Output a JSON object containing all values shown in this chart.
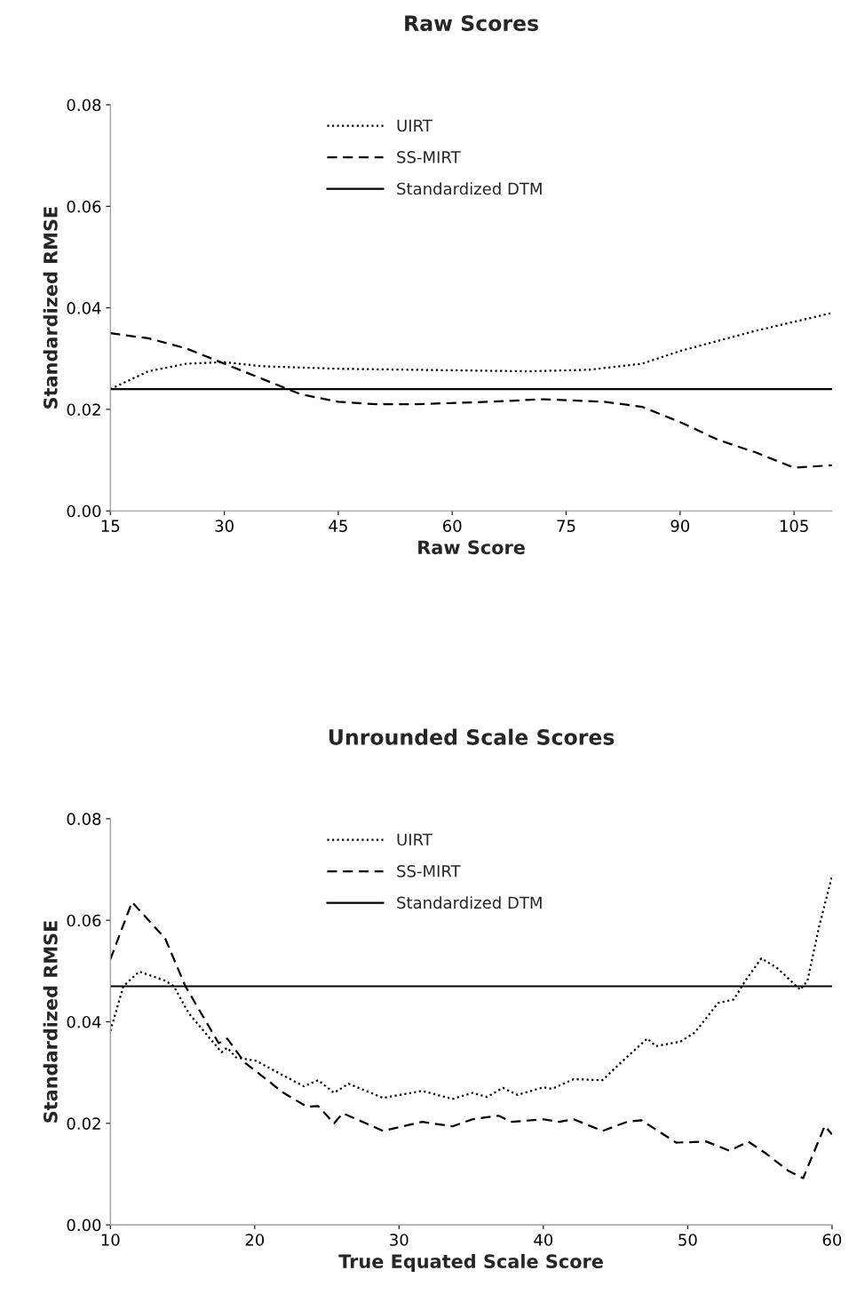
{
  "chart_data": [
    {
      "type": "line",
      "title": "Raw Scores",
      "xlabel": "Raw Score",
      "ylabel": "Standardized RMSE",
      "xlim": [
        15,
        110
      ],
      "xticks": [
        15,
        30,
        45,
        60,
        75,
        90,
        105
      ],
      "ylim": [
        0,
        0.08
      ],
      "yticks": [
        {
          "value": 0,
          "label": "0.00"
        },
        {
          "value": 0.02,
          "label": "0.02"
        },
        {
          "value": 0.04,
          "label": "0.04"
        },
        {
          "value": 0.06,
          "label": "0.06"
        },
        {
          "value": 0.08,
          "label": "0.08"
        }
      ],
      "grid": false,
      "legend": "top",
      "marker": "none",
      "series": [
        {
          "name": "UIRT",
          "color": "#000000",
          "line_style": "dotted",
          "x": [
            15,
            20,
            25,
            30,
            35,
            45,
            60,
            70,
            78,
            85,
            90,
            100,
            110
          ],
          "values": [
            0.024,
            0.0275,
            0.029,
            0.0293,
            0.0285,
            0.028,
            0.0277,
            0.0275,
            0.0278,
            0.029,
            0.0315,
            0.0355,
            0.039
          ]
        },
        {
          "name": "SS-MIRT",
          "color": "#000000",
          "line_style": "dashed",
          "x": [
            15,
            20,
            25,
            30,
            35,
            40,
            45,
            50,
            55,
            65,
            72,
            80,
            85,
            90,
            95,
            100,
            105,
            110
          ],
          "values": [
            0.035,
            0.034,
            0.032,
            0.029,
            0.026,
            0.023,
            0.0215,
            0.021,
            0.021,
            0.0215,
            0.022,
            0.0215,
            0.0205,
            0.0175,
            0.014,
            0.0115,
            0.0085,
            0.009
          ]
        },
        {
          "name": "Standardized DTM",
          "color": "#000000",
          "line_style": "solid",
          "x": [
            15,
            110
          ],
          "values": [
            0.024,
            0.024
          ]
        }
      ]
    },
    {
      "type": "line",
      "title": "Unrounded Scale Scores",
      "xlabel": "True Equated Scale Score",
      "ylabel": "Standardized RMSE",
      "xlim": [
        10,
        60
      ],
      "xticks": [
        10,
        20,
        30,
        40,
        50,
        60
      ],
      "ylim": [
        0,
        0.08
      ],
      "yticks": [
        {
          "value": 0,
          "label": "0.00"
        },
        {
          "value": 0.02,
          "label": "0.02"
        },
        {
          "value": 0.04,
          "label": "0.04"
        },
        {
          "value": 0.06,
          "label": "0.06"
        },
        {
          "value": 0.08,
          "label": "0.08"
        }
      ],
      "grid": false,
      "legend": "top",
      "marker": "none",
      "series": [
        {
          "name": "UIRT",
          "color": "#000000",
          "line_style": "dotted",
          "x": [
            10,
            10.9,
            12,
            13.8,
            14.4,
            15.4,
            17.7,
            18.1,
            18.7,
            20.1,
            22,
            23.4,
            24.4,
            25.5,
            26.5,
            28.9,
            31.6,
            33.7,
            35.1,
            36.1,
            37.2,
            38.2,
            40,
            40.6,
            42.1,
            44.1,
            45.5,
            47.2,
            47.8,
            49.5,
            50.5,
            52.1,
            53.2,
            54,
            55.1,
            56.2,
            57.8,
            58.3,
            59.1,
            60
          ],
          "values": [
            0.0382,
            0.047,
            0.0499,
            0.0481,
            0.047,
            0.0418,
            0.034,
            0.0349,
            0.033,
            0.0323,
            0.0294,
            0.0273,
            0.0285,
            0.026,
            0.0278,
            0.025,
            0.0264,
            0.0248,
            0.026,
            0.0252,
            0.027,
            0.0256,
            0.0271,
            0.0268,
            0.0287,
            0.0285,
            0.0323,
            0.0367,
            0.0352,
            0.0361,
            0.0379,
            0.0437,
            0.0444,
            0.0481,
            0.0525,
            0.0506,
            0.0463,
            0.0481,
            0.0587,
            0.0687
          ]
        },
        {
          "name": "SS-MIRT",
          "color": "#000000",
          "line_style": "dashed",
          "x": [
            10,
            11.5,
            13.8,
            15.2,
            17.5,
            18.1,
            19.3,
            22,
            23.6,
            24.4,
            25.5,
            26.1,
            27.7,
            28.9,
            31.6,
            33.7,
            35.1,
            36.9,
            37.8,
            40,
            41.1,
            42.1,
            44.1,
            45.8,
            46.8,
            49.2,
            51.3,
            52.9,
            54.2,
            55.4,
            57,
            58,
            59.5,
            60
          ],
          "values": [
            0.0523,
            0.0636,
            0.0564,
            0.047,
            0.0358,
            0.0367,
            0.032,
            0.026,
            0.0233,
            0.0234,
            0.02,
            0.022,
            0.02,
            0.0185,
            0.0203,
            0.0194,
            0.0208,
            0.0215,
            0.0203,
            0.0208,
            0.0203,
            0.0208,
            0.0185,
            0.0203,
            0.0206,
            0.0162,
            0.0164,
            0.0146,
            0.0164,
            0.0141,
            0.0106,
            0.0092,
            0.0195,
            0.0178
          ]
        },
        {
          "name": "Standardized DTM",
          "color": "#000000",
          "line_style": "solid",
          "x": [
            10,
            60
          ],
          "values": [
            0.047,
            0.047
          ]
        }
      ]
    }
  ]
}
